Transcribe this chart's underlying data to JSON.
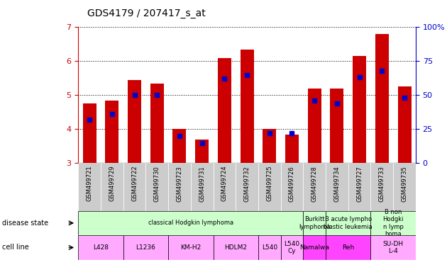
{
  "title": "GDS4179 / 207417_s_at",
  "samples": [
    "GSM499721",
    "GSM499729",
    "GSM499722",
    "GSM499730",
    "GSM499723",
    "GSM499731",
    "GSM499724",
    "GSM499732",
    "GSM499725",
    "GSM499726",
    "GSM499728",
    "GSM499734",
    "GSM499727",
    "GSM499733",
    "GSM499735"
  ],
  "transformed_count": [
    4.75,
    4.85,
    5.45,
    5.35,
    4.0,
    3.7,
    6.1,
    6.35,
    4.0,
    3.85,
    5.2,
    5.2,
    6.15,
    6.8,
    5.25
  ],
  "percentile_rank": [
    32,
    36,
    50,
    50,
    20,
    15,
    62,
    65,
    22,
    22,
    46,
    44,
    63,
    68,
    48
  ],
  "ylim_left": [
    3,
    7
  ],
  "ylim_right": [
    0,
    100
  ],
  "yticks_left": [
    3,
    4,
    5,
    6,
    7
  ],
  "yticks_right": [
    0,
    25,
    50,
    75,
    100
  ],
  "bar_color": "#cc0000",
  "percentile_color": "#0000cc",
  "bar_width": 0.6,
  "disease_groups": [
    {
      "label": "classical Hodgkin lymphoma",
      "start": 0,
      "end": 10,
      "color": "#ccffcc"
    },
    {
      "label": "Burkitt\nlymphoma",
      "start": 10,
      "end": 11,
      "color": "#ccffcc"
    },
    {
      "label": "B acute lympho\nblastic leukemia",
      "start": 11,
      "end": 13,
      "color": "#ccffcc"
    },
    {
      "label": "B non\nHodgki\nn lymp\nhoma",
      "start": 13,
      "end": 15,
      "color": "#ccffcc"
    }
  ],
  "cell_groups": [
    {
      "label": "L428",
      "start": 0,
      "end": 2,
      "color": "#ffaaff"
    },
    {
      "label": "L1236",
      "start": 2,
      "end": 4,
      "color": "#ffaaff"
    },
    {
      "label": "KM-H2",
      "start": 4,
      "end": 6,
      "color": "#ffaaff"
    },
    {
      "label": "HDLM2",
      "start": 6,
      "end": 8,
      "color": "#ffaaff"
    },
    {
      "label": "L540",
      "start": 8,
      "end": 9,
      "color": "#ffaaff"
    },
    {
      "label": "L540\nCy",
      "start": 9,
      "end": 10,
      "color": "#ffaaff"
    },
    {
      "label": "Namalwa",
      "start": 10,
      "end": 11,
      "color": "#ff44ff"
    },
    {
      "label": "Reh",
      "start": 11,
      "end": 13,
      "color": "#ff44ff"
    },
    {
      "label": "SU-DH\nL-4",
      "start": 13,
      "end": 15,
      "color": "#ffaaff"
    }
  ],
  "left_axis_color": "#cc0000",
  "right_axis_color": "#0000cc",
  "tick_bg_color": "#cccccc"
}
